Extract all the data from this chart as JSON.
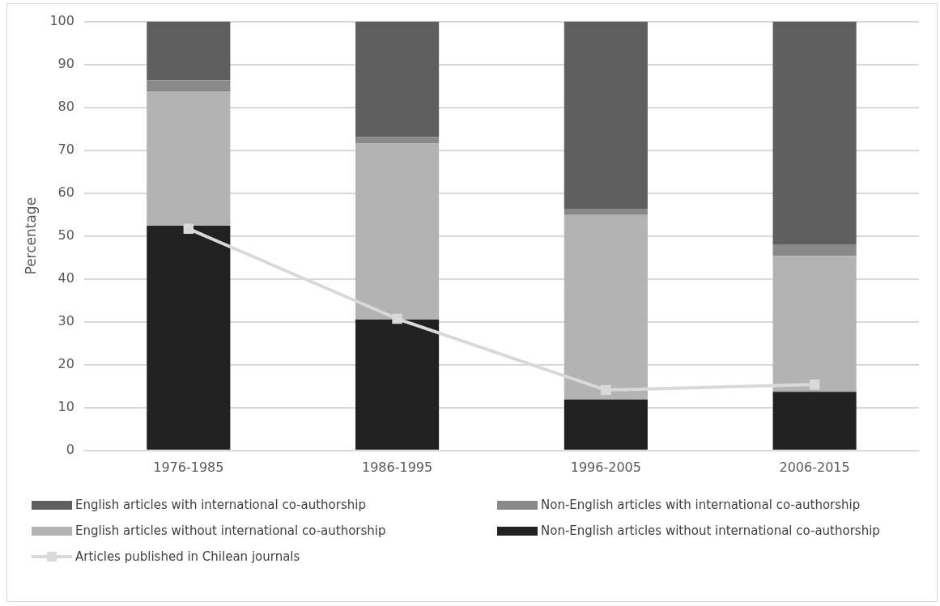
{
  "chart_data": {
    "type": "bar",
    "stacked": true,
    "ylabel": "Percentage",
    "categories": [
      "1976-1985",
      "1986-1995",
      "1996-2005",
      "2006-2015"
    ],
    "ylim": [
      0,
      100
    ],
    "yticks": [
      0,
      10,
      20,
      30,
      40,
      50,
      60,
      70,
      80,
      90,
      100
    ],
    "grid": "y",
    "legend": "bottom",
    "series": [
      {
        "name": "Non-English articles without international co-authorship",
        "color": "#212121",
        "values": [
          52.4,
          30.5,
          11.9,
          13.7
        ]
      },
      {
        "name": "English articles without international co-authorship",
        "color": "#b3b3b3",
        "values": [
          31.2,
          41.1,
          43.0,
          31.6
        ]
      },
      {
        "name": "Non-English articles with international co-authorship",
        "color": "#898989",
        "values": [
          2.7,
          1.5,
          1.3,
          2.6
        ]
      },
      {
        "name": "English articles with international co-authorship",
        "color": "#5f5f5f",
        "values": [
          13.7,
          26.9,
          43.8,
          52.1
        ]
      },
      {
        "name": "Articles published in Chilean journals",
        "type": "line",
        "color": "#d9d9d9",
        "marker": "square",
        "values": [
          51.7,
          30.7,
          14.1,
          15.4
        ]
      }
    ]
  }
}
